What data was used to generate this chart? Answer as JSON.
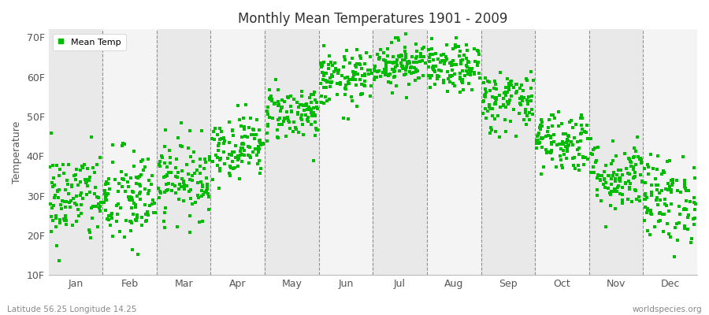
{
  "title": "Monthly Mean Temperatures 1901 - 2009",
  "ylabel": "Temperature",
  "yticks": [
    10,
    20,
    30,
    40,
    50,
    60,
    70
  ],
  "ytick_labels": [
    "10F",
    "20F",
    "30F",
    "40F",
    "50F",
    "60F",
    "70F"
  ],
  "ylim": [
    10,
    72
  ],
  "months": [
    "Jan",
    "Feb",
    "Mar",
    "Apr",
    "May",
    "Jun",
    "Jul",
    "Aug",
    "Sep",
    "Oct",
    "Nov",
    "Dec"
  ],
  "month_centers": [
    0.5,
    1.5,
    2.5,
    3.5,
    4.5,
    5.5,
    6.5,
    7.5,
    8.5,
    9.5,
    10.5,
    11.5
  ],
  "xlim": [
    0,
    12
  ],
  "dot_color": "#00bb00",
  "dot_size": 6,
  "background_color": "#f2f2f2",
  "band_colors": [
    "#e9e9e9",
    "#f4f4f4"
  ],
  "dashed_line_color": "#777777",
  "legend_label": "Mean Temp",
  "subtitle_left": "Latitude 56.25 Longitude 14.25",
  "subtitle_right": "worldspecies.org",
  "num_years": 109,
  "monthly_means_f": [
    29.5,
    29.0,
    34.5,
    42.5,
    51.0,
    59.5,
    63.5,
    62.0,
    54.0,
    44.0,
    35.0,
    29.0
  ],
  "monthly_stds_f": [
    6.0,
    6.5,
    5.0,
    4.0,
    3.5,
    3.5,
    3.0,
    3.0,
    4.0,
    4.0,
    4.5,
    5.5
  ],
  "seed": 42
}
